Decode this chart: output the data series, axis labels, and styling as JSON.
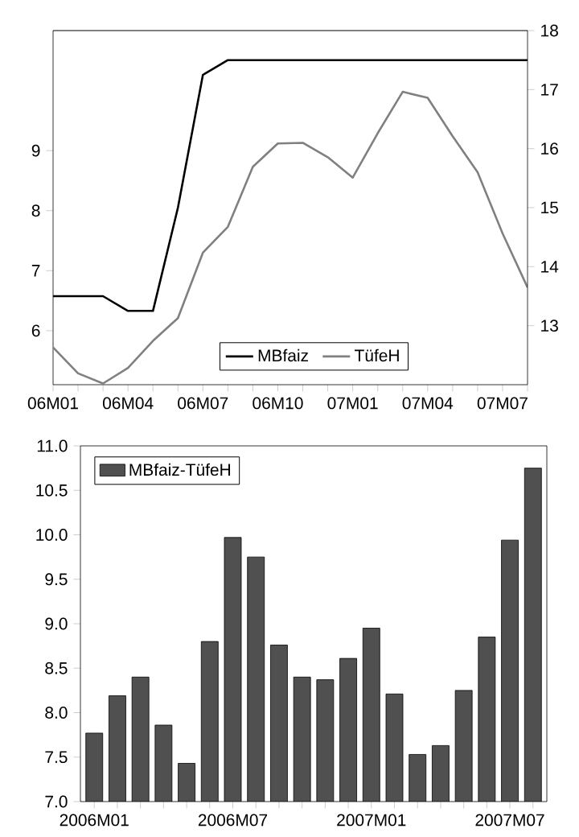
{
  "chart_data": [
    {
      "type": "line",
      "categories": [
        "06M01",
        null,
        null,
        "06M04",
        null,
        null,
        "06M07",
        null,
        null,
        "06M10",
        null,
        null,
        "07M01",
        null,
        null,
        "07M04",
        null,
        null,
        "07M07",
        null
      ],
      "series": [
        {
          "name": "MBfaiz",
          "color": "#000000",
          "axis": "y2",
          "values": [
            13.5,
            13.5,
            13.5,
            13.25,
            13.25,
            15.0,
            17.25,
            17.5,
            17.5,
            17.5,
            17.5,
            17.5,
            17.5,
            17.5,
            17.5,
            17.5,
            17.5,
            17.5,
            17.5,
            17.5
          ]
        },
        {
          "name": "TüfeH",
          "color": "#808080",
          "values": [
            5.72,
            5.29,
            5.12,
            5.38,
            5.83,
            6.21,
            7.3,
            7.73,
            8.73,
            9.12,
            9.13,
            8.89,
            8.55,
            9.29,
            9.98,
            9.88,
            9.24,
            8.64,
            7.62,
            6.72
          ]
        }
      ],
      "ylim": [
        5.1,
        11.0
      ],
      "yticks": [
        6,
        7,
        8,
        9
      ],
      "y2lim": [
        12,
        18
      ],
      "y2ticks": [
        13,
        14,
        15,
        16,
        17,
        18
      ],
      "legend": "bottom"
    },
    {
      "type": "bar",
      "categories": [
        "2006M01",
        null,
        null,
        null,
        null,
        null,
        "2006M07",
        null,
        null,
        null,
        null,
        null,
        "2007M01",
        null,
        null,
        null,
        null,
        null,
        "2007M07",
        null
      ],
      "series": [
        {
          "name": "MBfaiz-TüfeH",
          "color": "#505050",
          "values": [
            7.77,
            8.19,
            8.4,
            7.86,
            7.43,
            8.8,
            9.97,
            9.75,
            8.76,
            8.4,
            8.37,
            8.61,
            8.95,
            8.21,
            7.53,
            7.63,
            8.25,
            8.85,
            9.94,
            10.75
          ]
        }
      ],
      "ylim": [
        7.0,
        11.0
      ],
      "yticks": [
        {
          "value": 7,
          "label": "7.0"
        },
        {
          "value": 7.5,
          "label": "7.5"
        },
        {
          "value": 8,
          "label": "8.0"
        },
        {
          "value": 8.5,
          "label": "8.5"
        },
        {
          "value": 9,
          "label": "9.0"
        },
        {
          "value": 9.5,
          "label": "9.5"
        },
        {
          "value": 10,
          "label": "10.0"
        },
        {
          "value": 10.5,
          "label": "10.5"
        },
        {
          "value": 11,
          "label": "11.0"
        }
      ],
      "legend": "top left"
    }
  ]
}
